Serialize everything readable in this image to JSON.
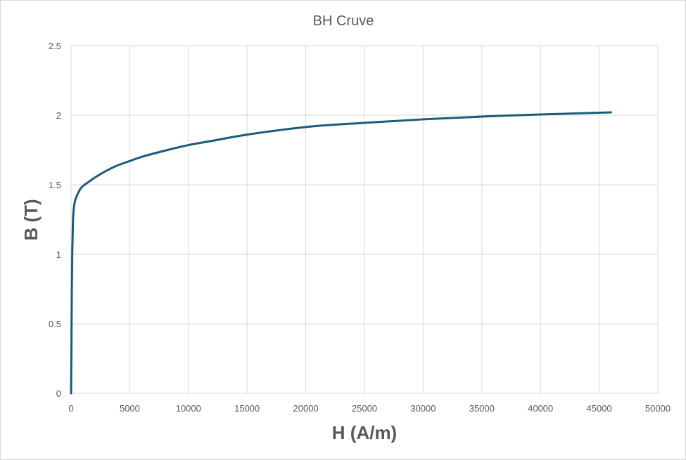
{
  "chart_data": {
    "type": "line",
    "title": "BH Cruve",
    "xlabel": "H (A/m)",
    "ylabel": "B (T)",
    "xlim": [
      0,
      50000
    ],
    "ylim": [
      0,
      2.5
    ],
    "x_ticks": [
      "0",
      "5000",
      "10000",
      "15000",
      "20000",
      "25000",
      "30000",
      "35000",
      "40000",
      "45000",
      "50000"
    ],
    "y_ticks": [
      "0",
      "0.5",
      "1",
      "1.5",
      "2",
      "2.5"
    ],
    "grid": true,
    "legend": "none",
    "series": [
      {
        "color": "#1b5a7a",
        "x": [
          0,
          30,
          60,
          100,
          150,
          200,
          300,
          400,
          600,
          800,
          1000,
          1500,
          2000,
          3000,
          4000,
          5000,
          6000,
          8000,
          10000,
          12000,
          15000,
          20000,
          25000,
          30000,
          35000,
          40000,
          46000
        ],
        "y": [
          0,
          0.3,
          0.7,
          1.0,
          1.2,
          1.3,
          1.37,
          1.4,
          1.44,
          1.47,
          1.49,
          1.52,
          1.55,
          1.6,
          1.64,
          1.67,
          1.7,
          1.745,
          1.785,
          1.815,
          1.86,
          1.915,
          1.945,
          1.97,
          1.99,
          2.005,
          2.02
        ]
      }
    ]
  }
}
